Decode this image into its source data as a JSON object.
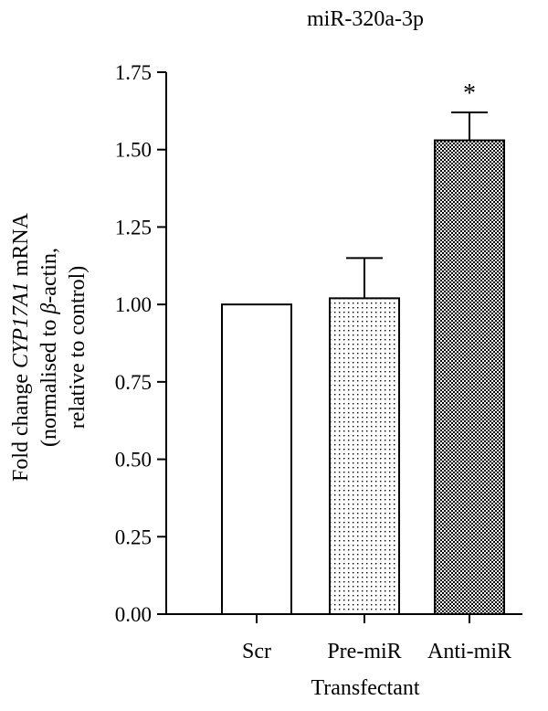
{
  "chart_data": {
    "type": "bar",
    "title": "miR-320a-3p",
    "xlabel": "Transfectant",
    "ylabel_lines": [
      [
        "Fold change ",
        "CYP17A1",
        " mRNA"
      ],
      [
        "(normalised to ",
        "β",
        "-actin,"
      ],
      [
        "relative to control)"
      ]
    ],
    "categories": [
      "Scr",
      "Pre-miR",
      "Anti-miR"
    ],
    "values": [
      1.0,
      1.02,
      1.53
    ],
    "errors": [
      0,
      0.13,
      0.09
    ],
    "fills": [
      "empty",
      "dots",
      "checker"
    ],
    "annotations": [
      "",
      "",
      "*"
    ],
    "ylim": [
      0,
      1.75
    ],
    "yticks": [
      0,
      0.25,
      0.5,
      0.75,
      1.0,
      1.25,
      1.5,
      1.75
    ],
    "ytick_labels": [
      "0.00",
      "0.25",
      "0.50",
      "0.75",
      "1.00",
      "1.25",
      "1.50",
      "1.75"
    ],
    "grid": false,
    "legend": "none"
  }
}
